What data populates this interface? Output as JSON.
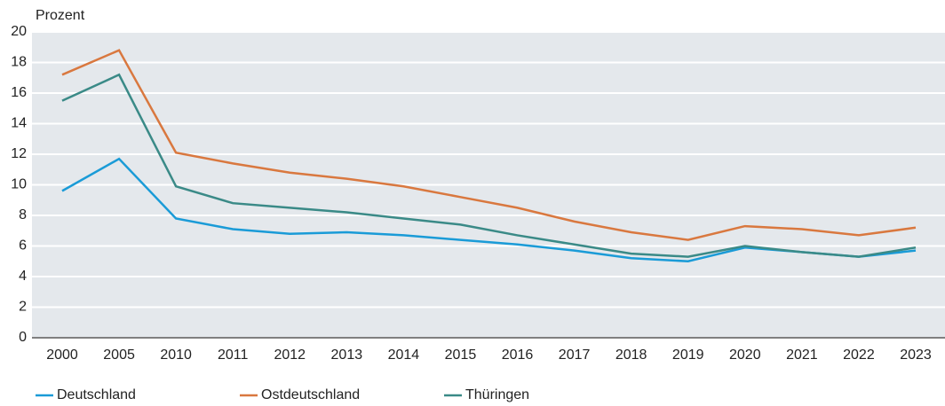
{
  "chart_data": {
    "type": "line",
    "y_label": "Prozent",
    "categories": [
      "2000",
      "2005",
      "2010",
      "2011",
      "2012",
      "2013",
      "2014",
      "2015",
      "2016",
      "2017",
      "2018",
      "2019",
      "2020",
      "2021",
      "2022",
      "2023"
    ],
    "series": [
      {
        "name": "Deutschland",
        "color": "#1a9bd7",
        "values": [
          9.6,
          11.7,
          7.8,
          7.1,
          6.8,
          6.9,
          6.7,
          6.4,
          6.1,
          5.7,
          5.2,
          5.0,
          5.9,
          5.6,
          5.3,
          5.7
        ]
      },
      {
        "name": "Ostdeutschland",
        "color": "#d9783f",
        "values": [
          17.2,
          18.8,
          12.1,
          11.4,
          10.8,
          10.4,
          9.9,
          9.2,
          8.5,
          7.6,
          6.9,
          6.4,
          7.3,
          7.1,
          6.7,
          7.2
        ]
      },
      {
        "name": "Thüringen",
        "color": "#3a8a87",
        "values": [
          15.5,
          17.2,
          9.9,
          8.8,
          8.5,
          8.2,
          7.8,
          7.4,
          6.7,
          6.1,
          5.5,
          5.3,
          6.0,
          5.6,
          5.3,
          5.9
        ]
      }
    ],
    "ylim": [
      0,
      20
    ],
    "yticks": [
      0,
      2,
      4,
      6,
      8,
      10,
      12,
      14,
      16,
      18,
      20
    ],
    "grid": true
  }
}
